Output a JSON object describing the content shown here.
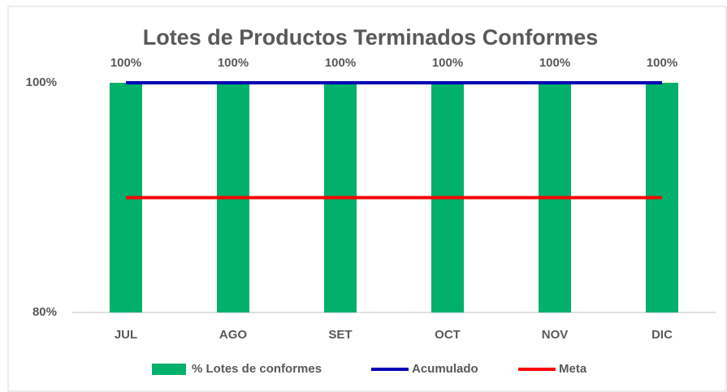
{
  "chart_data": {
    "type": "bar",
    "title": "Lotes de Productos Terminados Conformes",
    "categories": [
      "JUL",
      "AGO",
      "SET",
      "OCT",
      "NOV",
      "DIC"
    ],
    "series": [
      {
        "name": "% Lotes de conformes",
        "type": "bar",
        "color": "#00b06b",
        "values": [
          100,
          100,
          100,
          100,
          100,
          100
        ],
        "value_labels": [
          "100%",
          "100%",
          "100%",
          "100%",
          "100%",
          "100%"
        ]
      },
      {
        "name": "Acumulado",
        "type": "line",
        "color": "#0000b3",
        "values": [
          100,
          100,
          100,
          100,
          100,
          100
        ]
      },
      {
        "name": "Meta",
        "type": "line",
        "color": "#ff0000",
        "values": [
          90,
          90,
          90,
          90,
          90,
          90
        ]
      }
    ],
    "ylim": [
      80,
      100
    ],
    "yticks": [
      {
        "value": 80,
        "label": "80%"
      },
      {
        "value": 100,
        "label": "100%"
      }
    ],
    "grid": false
  }
}
